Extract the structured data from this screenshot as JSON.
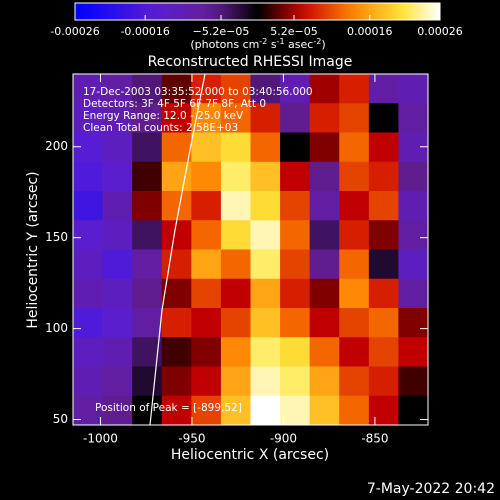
{
  "chart_data": {
    "type": "heatmap",
    "title": "Reconstructed RHESSI Image",
    "xlabel": "Heliocentric X (arcsec)",
    "ylabel": "Heliocentric Y (arcsec)",
    "xlim": [
      -1015,
      -821
    ],
    "ylim": [
      47,
      240
    ],
    "xticks": [
      -1000,
      -950,
      -900,
      -850
    ],
    "yticks": [
      50,
      100,
      150,
      200
    ],
    "annotations": [
      "17-Dec-2003 03:35:52.000 to 03:40:56.000",
      "Detectors: 3F 4F 5F 6F 7F 8F, Att 0",
      "Energy Range: 12.0 - 25.0 keV",
      "Clean     Total counts: 2.58E+03"
    ],
    "peak_label": "Position of Peak = [-899,52]",
    "footer": "7-May-2022 20:42",
    "colorbar": {
      "lim": [
        -0.00026,
        0.00026
      ],
      "ticks": [
        -0.00026,
        -0.00016,
        {
          "value": -5.2e-05,
          "label": "−5.2e−05"
        },
        {
          "value": 5.2e-05,
          "label": "5.2e−05"
        },
        0.00016,
        0.00026
      ],
      "label_parts": [
        "(photons cm",
        "-2",
        " s",
        "-1",
        " asec",
        "-2",
        ")"
      ]
    },
    "z": [
      [
        -0.0001,
        -8e-05,
        -5e-05,
        3e-05,
        8e-05,
        0.0001,
        -5e-05,
        -0.0001,
        5e-05,
        8e-05,
        -8e-05,
        -0.0001
      ],
      [
        -0.00012,
        -0.0001,
        -6e-05,
        6e-05,
        0.00014,
        0.00012,
        8e-05,
        -6e-05,
        8e-05,
        0.0001,
        0,
        -8e-05
      ],
      [
        -0.00015,
        -0.00012,
        -4e-05,
        0.00012,
        0.00018,
        0.0002,
        0.00012,
        0,
        4e-05,
        0.00012,
        6e-05,
        -0.0001
      ],
      [
        -0.00016,
        -0.00014,
        2e-05,
        0.00016,
        0.00014,
        0.00022,
        0.00018,
        6e-05,
        -6e-05,
        0.0001,
        8e-05,
        -6e-05
      ],
      [
        -0.00018,
        -0.0001,
        4e-05,
        0.00012,
        8e-05,
        0.00024,
        0.0002,
        0.0001,
        -8e-05,
        6e-05,
        0.0001,
        -0.0001
      ],
      [
        -0.00014,
        -0.00012,
        -4e-05,
        6e-05,
        0.00012,
        0.0002,
        0.00024,
        0.00012,
        -4e-05,
        8e-05,
        4e-05,
        -8e-05
      ],
      [
        -0.00012,
        -0.00016,
        -8e-05,
        8e-05,
        0.00016,
        0.00012,
        0.00022,
        0.0001,
        -6e-05,
        0.00012,
        -2e-05,
        -0.00012
      ],
      [
        -0.0001,
        -0.00012,
        -6e-05,
        4e-05,
        0.0001,
        6e-05,
        0.00016,
        8e-05,
        4e-05,
        0.00014,
        8e-05,
        -8e-05
      ],
      [
        -0.00016,
        -0.00014,
        -8e-05,
        8e-05,
        6e-05,
        0.0001,
        0.00018,
        0.00012,
        6e-05,
        0.0001,
        0.00012,
        4e-05
      ],
      [
        -0.00012,
        -0.0001,
        -4e-05,
        2e-05,
        4e-05,
        0.00014,
        0.00022,
        0.0002,
        0.00012,
        6e-05,
        0.0001,
        6e-05
      ],
      [
        -0.0001,
        -8e-05,
        -2e-05,
        4e-05,
        6e-05,
        0.00016,
        0.00024,
        0.00022,
        0.00016,
        0.0001,
        8e-05,
        2e-05
      ],
      [
        -8e-05,
        -6e-05,
        0,
        6e-05,
        0.0001,
        0.00018,
        0.00026,
        0.00024,
        0.00018,
        0.00012,
        6e-05,
        0
      ]
    ]
  }
}
